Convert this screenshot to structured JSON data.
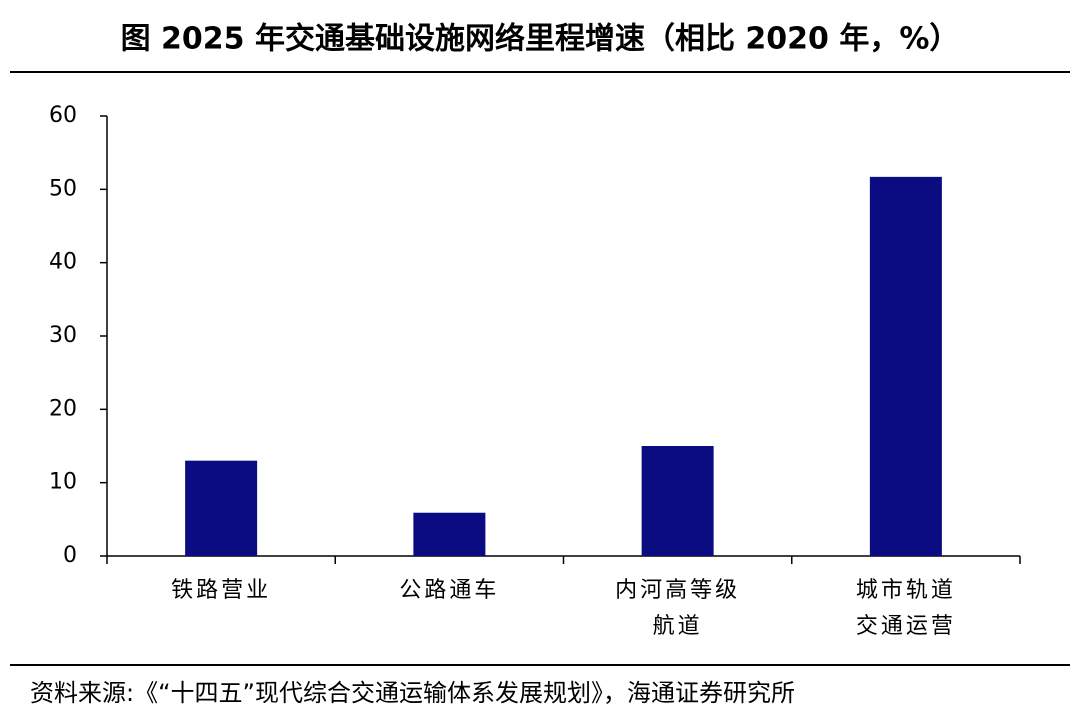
{
  "chart_data": {
    "type": "bar",
    "title": "图 2025 年交通基础设施网络里程增速（相比 2020 年，%）",
    "categories": [
      "铁路营业",
      "公路通车",
      "内河高等级\n航道",
      "城市轨道\n交通运营"
    ],
    "values": [
      13,
      5.9,
      15,
      51.7
    ],
    "color": "#0b0b82",
    "ylim": [
      0,
      60
    ],
    "yticks": [
      0,
      10,
      20,
      30,
      40,
      50,
      60
    ],
    "grid": false,
    "source": "资料来源:《“十四五”现代综合交通运输体系发展规划》，海通证券研究所"
  }
}
